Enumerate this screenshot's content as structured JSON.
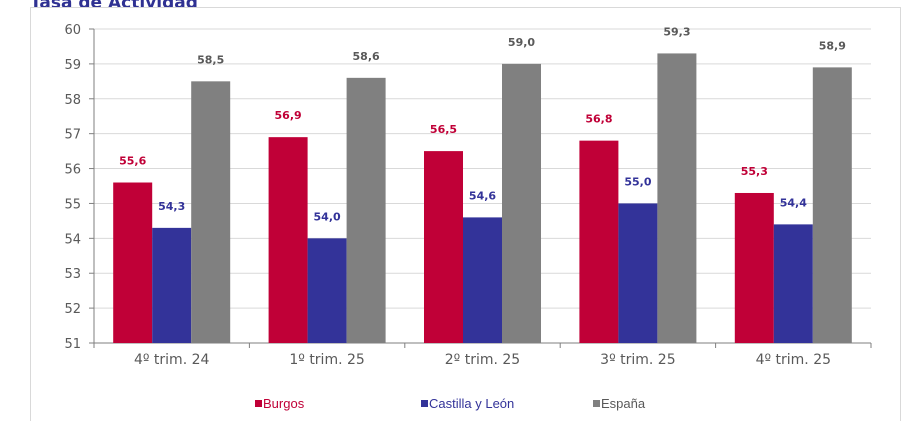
{
  "chart_data": {
    "type": "bar",
    "title": "Tasa de Actividad",
    "categories": [
      "4º trim. 24",
      "1º trim. 25",
      "2º trim. 25",
      "3º trim. 25",
      "4º trim. 25"
    ],
    "series": [
      {
        "name": "Burgos",
        "color": "#c00037",
        "label_color": "#c00037",
        "values": [
          55.6,
          56.9,
          56.5,
          56.8,
          55.3
        ],
        "labels": [
          "55,6",
          "56,9",
          "56,5",
          "56,8",
          "55,3"
        ]
      },
      {
        "name": "Castilla y León",
        "color": "#333399",
        "label_color": "#333399",
        "values": [
          54.3,
          54.0,
          54.6,
          55.0,
          54.4
        ],
        "labels": [
          "54,3",
          "54,0",
          "54,6",
          "55,0",
          "54,4"
        ]
      },
      {
        "name": "España",
        "color": "#808080",
        "label_color": "#595959",
        "values": [
          58.5,
          58.6,
          59.0,
          59.3,
          58.9
        ],
        "labels": [
          "58,5",
          "58,6",
          "59,0",
          "59,3",
          "58,9"
        ]
      }
    ],
    "ylim": [
      51,
      60
    ],
    "yticks": [
      "51",
      "52",
      "53",
      "54",
      "55",
      "56",
      "57",
      "58",
      "59",
      "60"
    ],
    "grid": true,
    "legend_position": "bottom",
    "xlabel": "",
    "ylabel": ""
  },
  "colors": {
    "title": "#2f3192",
    "grid": "#d9d9d9",
    "axis": "#7f7f7f"
  }
}
